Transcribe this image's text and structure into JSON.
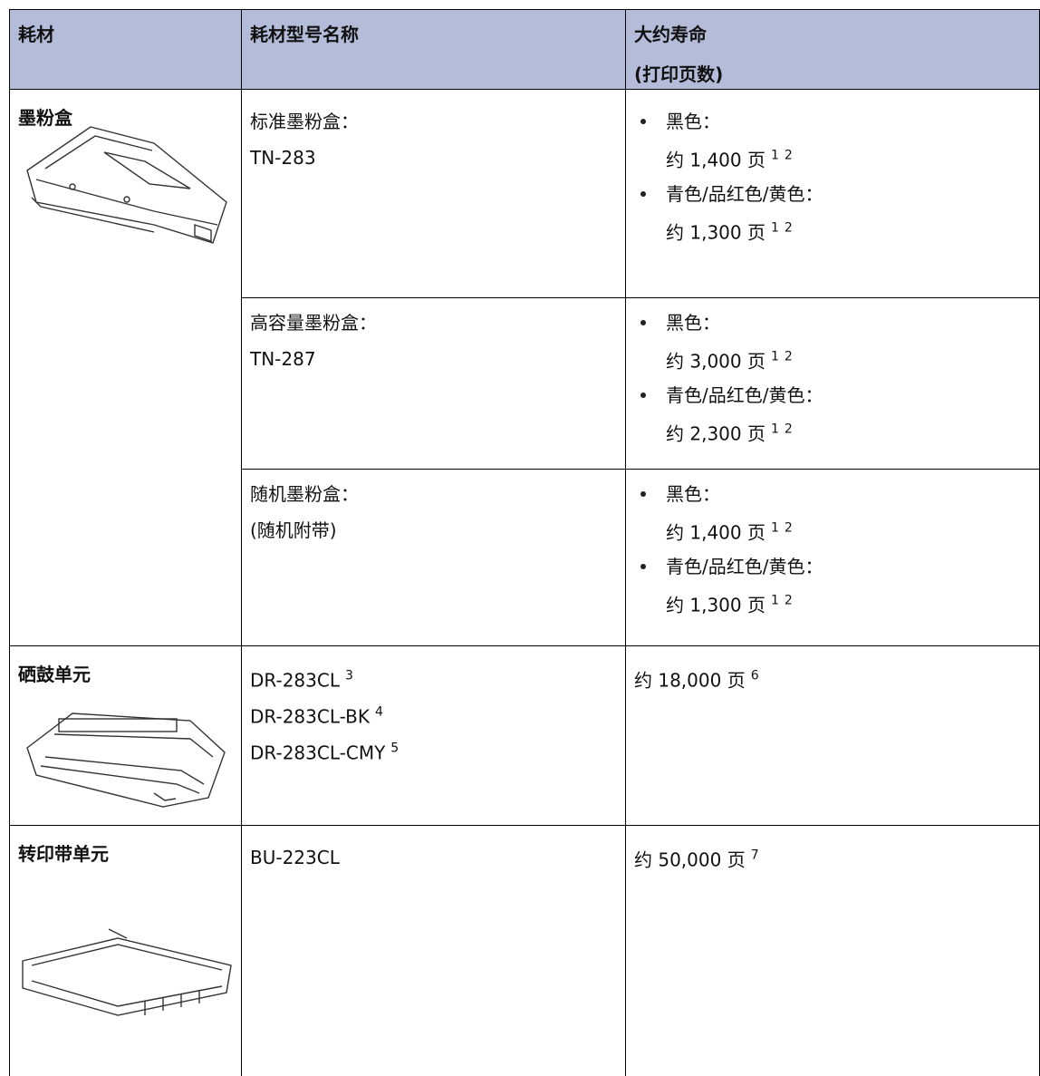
{
  "table": {
    "header": [
      [
        "耗材"
      ],
      [
        "耗材型号名称"
      ],
      [
        "大约寿命",
        "(打印页数)"
      ]
    ],
    "groups": [
      {
        "item": "墨粉盒",
        "rows": [
          {
            "model": [
              "标准墨粉盒：",
              "TN-283"
            ],
            "life": [
              {
                "color": "黑色：",
                "pages": "约 1,400 页",
                "notes": [
                  "1",
                  "2"
                ]
              },
              {
                "color": "青色/品红色/黄色：",
                "pages": "约 1,300 页",
                "notes": [
                  "1",
                  "2"
                ]
              }
            ]
          },
          {
            "model": [
              "高容量墨粉盒：",
              "TN-287"
            ],
            "life": [
              {
                "color": "黑色：",
                "pages": "约 3,000 页",
                "notes": [
                  "1",
                  "2"
                ]
              },
              {
                "color": "青色/品红色/黄色：",
                "pages": "约 2,300 页",
                "notes": [
                  "1",
                  "2"
                ]
              }
            ]
          },
          {
            "model": [
              "随机墨粉盒：",
              "(随机附带)"
            ],
            "life": [
              {
                "color": "黑色：",
                "pages": "约 1,400 页",
                "notes": [
                  "1",
                  "2"
                ]
              },
              {
                "color": "青色/品红色/黄色：",
                "pages": "约 1,300 页",
                "notes": [
                  "1",
                  "2"
                ]
              }
            ]
          }
        ]
      },
      {
        "item": "硒鼓单元",
        "rows": [
          {
            "models": [
              {
                "text": "DR-283CL",
                "note": "3"
              },
              {
                "text": "DR-283CL-BK",
                "note": "4"
              },
              {
                "text": "DR-283CL-CMY",
                "note": "5"
              }
            ],
            "life": [
              {
                "pages": "约 18,000 页",
                "notes": [
                  "6"
                ]
              }
            ]
          }
        ]
      },
      {
        "item": "转印带单元",
        "rows": [
          {
            "model": [
              "BU-223CL"
            ],
            "life": [
              {
                "pages": "约 50,000 页",
                "notes": [
                  "7"
                ]
              }
            ]
          }
        ]
      }
    ]
  }
}
